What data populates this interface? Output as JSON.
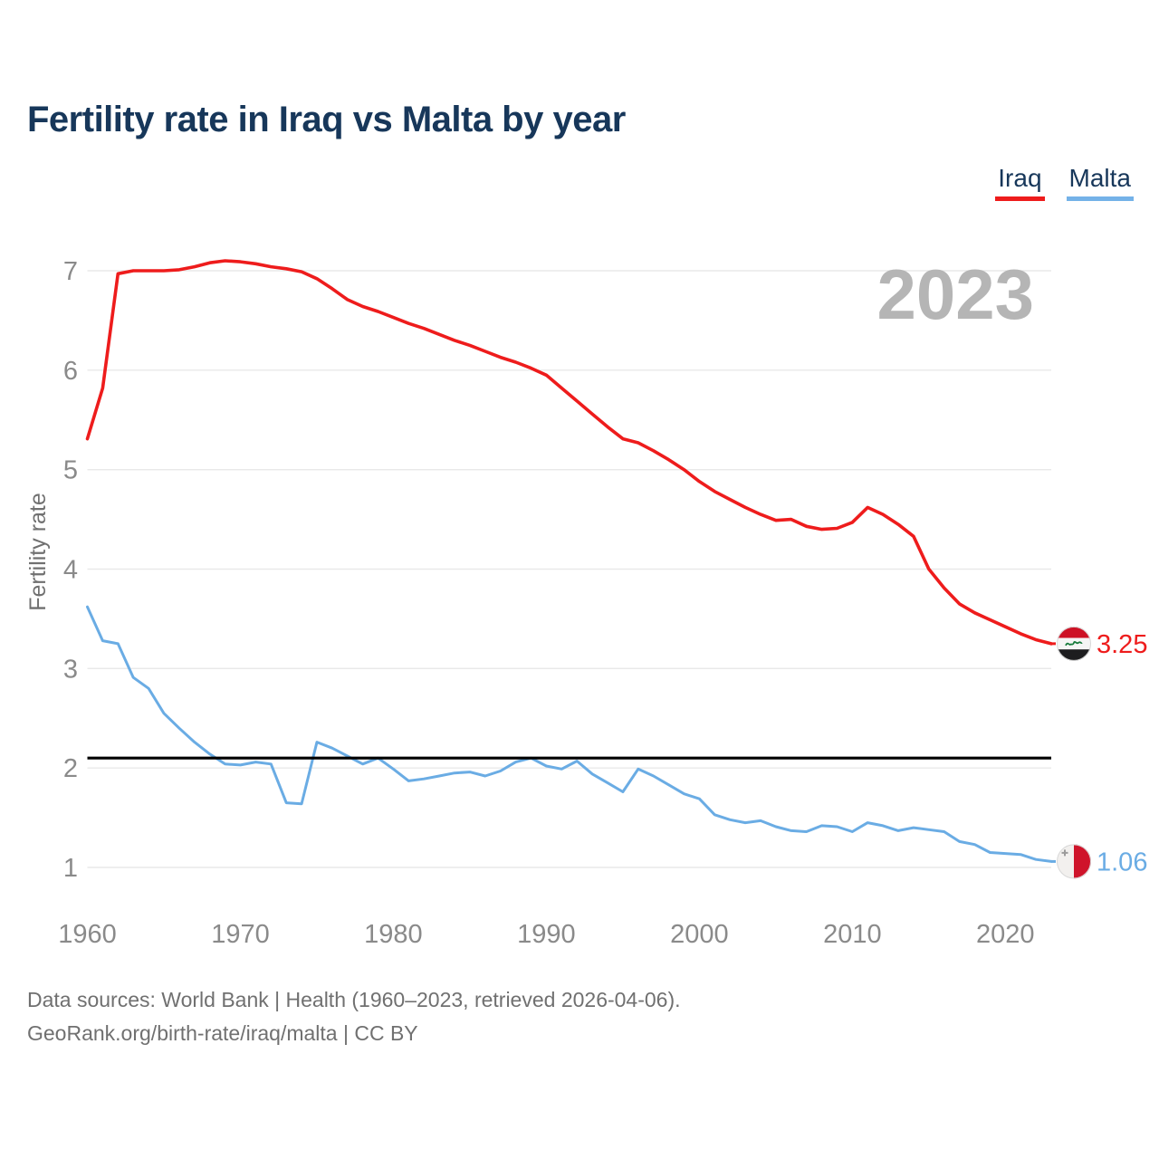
{
  "page": {
    "title": "Fertility rate in Iraq vs Malta by year",
    "watermark_year": "2023",
    "footer_line1": "Data sources: World Bank | Health (1960–2023, retrieved 2026-04-06).",
    "footer_line2": "GeoRank.org/birth-rate/iraq/malta | CC BY"
  },
  "legend": {
    "items": [
      {
        "label": "Iraq",
        "color": "#ee1c1c"
      },
      {
        "label": "Malta",
        "color": "#74b2e8"
      }
    ]
  },
  "colors": {
    "title_text": "#17375a",
    "tick_text": "#8a8a8a",
    "gridline": "#e9e9e9",
    "watermark": "#b5b5b5",
    "reference_line": "#000000",
    "iraq_line": "#ee1c1c",
    "malta_line": "#6aace4"
  },
  "chart_data": {
    "type": "line",
    "title": "Fertility rate in Iraq vs Malta by year",
    "xlabel": "",
    "ylabel": "Fertility rate",
    "ylim": [
      1,
      7
    ],
    "x_range": [
      1960,
      2023
    ],
    "yticks": [
      1,
      2,
      3,
      4,
      5,
      6,
      7
    ],
    "xticks": [
      1960,
      1970,
      1980,
      1990,
      2000,
      2010,
      2020
    ],
    "grid": "horizontal",
    "legend_position": "top-right",
    "reference_line": {
      "value": 2.1,
      "color": "#000000"
    },
    "x": [
      1960,
      1961,
      1962,
      1963,
      1964,
      1965,
      1966,
      1967,
      1968,
      1969,
      1970,
      1971,
      1972,
      1973,
      1974,
      1975,
      1976,
      1977,
      1978,
      1979,
      1980,
      1981,
      1982,
      1983,
      1984,
      1985,
      1986,
      1987,
      1988,
      1989,
      1990,
      1991,
      1992,
      1993,
      1994,
      1995,
      1996,
      1997,
      1998,
      1999,
      2000,
      2001,
      2002,
      2003,
      2004,
      2005,
      2006,
      2007,
      2008,
      2009,
      2010,
      2011,
      2012,
      2013,
      2014,
      2015,
      2016,
      2017,
      2018,
      2019,
      2020,
      2021,
      2022,
      2023
    ],
    "series": [
      {
        "name": "Iraq",
        "color": "#ee1c1c",
        "end_value_label": "3.25",
        "values": [
          5.31,
          5.82,
          6.97,
          7.0,
          7.0,
          7.0,
          7.01,
          7.04,
          7.08,
          7.1,
          7.09,
          7.07,
          7.04,
          7.02,
          6.99,
          6.92,
          6.82,
          6.71,
          6.64,
          6.59,
          6.53,
          6.47,
          6.42,
          6.36,
          6.3,
          6.25,
          6.19,
          6.13,
          6.08,
          6.02,
          5.95,
          5.82,
          5.69,
          5.56,
          5.43,
          5.31,
          5.27,
          5.19,
          5.1,
          5.0,
          4.88,
          4.78,
          4.7,
          4.62,
          4.55,
          4.49,
          4.5,
          4.43,
          4.4,
          4.41,
          4.47,
          4.62,
          4.55,
          4.45,
          4.33,
          4.0,
          3.81,
          3.65,
          3.56,
          3.49,
          3.42,
          3.35,
          3.29,
          3.25
        ]
      },
      {
        "name": "Malta",
        "color": "#6aace4",
        "end_value_label": "1.06",
        "values": [
          3.62,
          3.28,
          3.25,
          2.91,
          2.8,
          2.55,
          2.4,
          2.26,
          2.14,
          2.04,
          2.03,
          2.06,
          2.04,
          1.65,
          1.64,
          2.26,
          2.2,
          2.12,
          2.04,
          2.1,
          1.99,
          1.87,
          1.89,
          1.92,
          1.95,
          1.96,
          1.92,
          1.97,
          2.06,
          2.1,
          2.02,
          1.99,
          2.07,
          1.94,
          1.85,
          1.76,
          1.99,
          1.92,
          1.83,
          1.74,
          1.69,
          1.53,
          1.48,
          1.45,
          1.47,
          1.41,
          1.37,
          1.36,
          1.42,
          1.41,
          1.36,
          1.45,
          1.42,
          1.37,
          1.4,
          1.38,
          1.36,
          1.26,
          1.23,
          1.15,
          1.14,
          1.13,
          1.08,
          1.06
        ]
      }
    ]
  }
}
